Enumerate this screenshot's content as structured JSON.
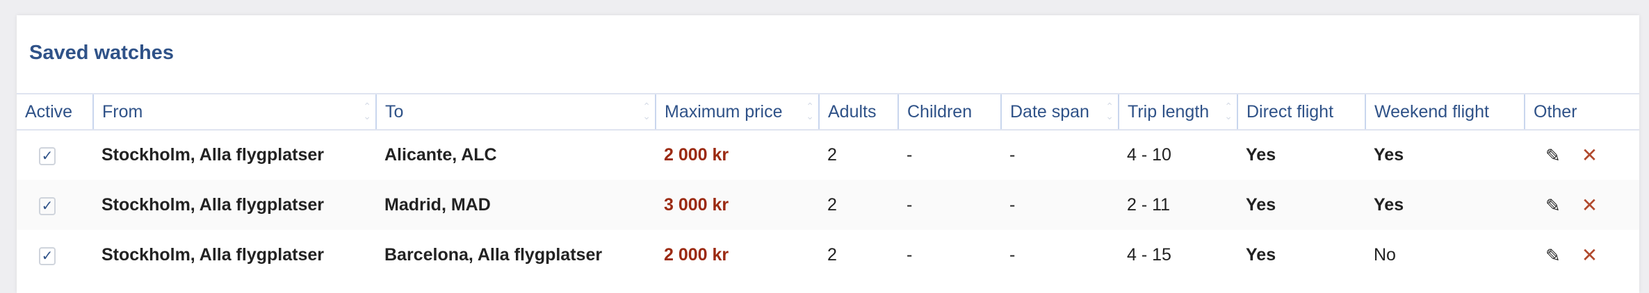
{
  "title": "Saved watches",
  "columns": [
    "Active",
    "From",
    "To",
    "Maximum price",
    "Adults",
    "Children",
    "Date span",
    "Trip length",
    "Direct flight",
    "Weekend flight",
    "Other"
  ],
  "rows": [
    {
      "active": true,
      "from": "Stockholm, Alla flygplatser",
      "to": "Alicante, ALC",
      "price": "2 000 kr",
      "adults": "2",
      "children": "-",
      "date_span": "-",
      "trip_length": "4 - 10",
      "direct": "Yes",
      "weekend": "Yes"
    },
    {
      "active": true,
      "from": "Stockholm, Alla flygplatser",
      "to": "Madrid, MAD",
      "price": "3 000 kr",
      "adults": "2",
      "children": "-",
      "date_span": "-",
      "trip_length": "2 - 11",
      "direct": "Yes",
      "weekend": "Yes"
    },
    {
      "active": true,
      "from": "Stockholm, Alla flygplatser",
      "to": "Barcelona, Alla flygplatser",
      "price": "2 000 kr",
      "adults": "2",
      "children": "-",
      "date_span": "-",
      "trip_length": "4 - 15",
      "direct": "Yes",
      "weekend": "No"
    }
  ],
  "icons": {
    "check": "✓",
    "edit": "✎",
    "delete": "✕"
  },
  "colors": {
    "title": "#2f5288",
    "price": "#9b2a12",
    "delete": "#b14a2e"
  }
}
